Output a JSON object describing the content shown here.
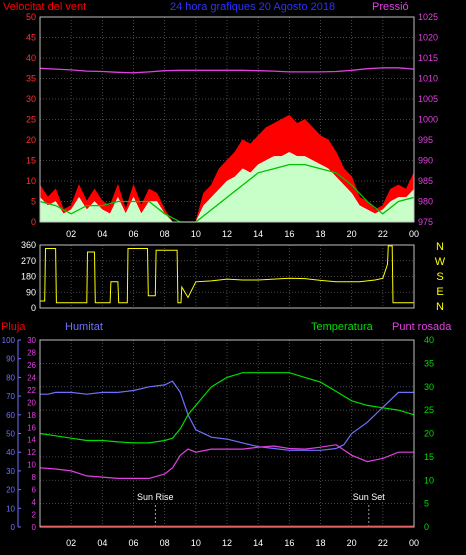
{
  "header": {
    "left_label": "Velocitat del vent",
    "center_label": "24 hora grafiques   20 Agosto 2018",
    "right_label": "Pressió"
  },
  "colors": {
    "background": "#000000",
    "grid": "#5a5a5a",
    "axis_frame": "#c0c0c0",
    "wind_gust": "#ff0000",
    "wind_avg": "#00c000",
    "wind_speed": "#c8ffc8",
    "pressure": "#e040e0",
    "direction": "#ffff00",
    "humidity": "#7070ff",
    "temperature": "#00dd00",
    "dewpoint": "#e040e0",
    "rain": "#ff0000",
    "sun_line": "#c0c0c0"
  },
  "chart_data": [
    {
      "id": "wind_pressure",
      "type": "line",
      "title": "24 hora grafiques   20 Agosto 2018",
      "x_ticks": [
        "02",
        "04",
        "06",
        "08",
        "10",
        "12",
        "14",
        "16",
        "18",
        "20",
        "22",
        "00"
      ],
      "x_range": [
        0,
        24
      ],
      "y_left": {
        "label": "Velocitat del vent",
        "range": [
          0,
          50
        ],
        "ticks": [
          0,
          5,
          10,
          15,
          20,
          25,
          30,
          35,
          40,
          45,
          50
        ]
      },
      "y_right": {
        "label": "Pressió",
        "range": [
          975,
          1025
        ],
        "ticks": [
          975,
          980,
          985,
          990,
          995,
          1000,
          1005,
          1010,
          1015,
          1020,
          1025
        ]
      },
      "grid": true,
      "series": [
        {
          "key": "gust",
          "axis": "left",
          "style": "fill",
          "x": [
            0,
            0.5,
            1,
            1.5,
            2,
            2.5,
            3,
            3.5,
            4,
            4.5,
            5,
            5.5,
            6,
            6.5,
            7,
            7.5,
            8,
            8.5,
            9,
            9.5,
            10,
            10.5,
            11,
            11.5,
            12,
            12.5,
            13,
            13.5,
            14,
            14.5,
            15,
            15.5,
            16,
            16.5,
            17,
            17.5,
            18,
            18.5,
            19,
            19.5,
            20,
            20.5,
            21,
            21.5,
            22,
            22.5,
            23,
            23.5,
            24
          ],
          "y": [
            9,
            6,
            8,
            3,
            4,
            9,
            5,
            8,
            5,
            4,
            9,
            3,
            9,
            4,
            8,
            7,
            3,
            0,
            0,
            0,
            0,
            7,
            9,
            13,
            15,
            17,
            20,
            19,
            21,
            23,
            24,
            25,
            26,
            24,
            25,
            23,
            21,
            20,
            17,
            13,
            11,
            6,
            5,
            3,
            4,
            8,
            9,
            8,
            12
          ]
        },
        {
          "key": "avg",
          "axis": "left",
          "style": "line",
          "x": [
            0,
            1,
            2,
            3,
            4,
            5,
            6,
            7,
            8,
            9,
            10,
            11,
            12,
            13,
            14,
            15,
            16,
            17,
            18,
            19,
            20,
            21,
            22,
            23,
            24
          ],
          "y": [
            5,
            4,
            2,
            4,
            4,
            5,
            5,
            5,
            2,
            0,
            0,
            3,
            6,
            9,
            12,
            13,
            14,
            14,
            13,
            12,
            9,
            5,
            2,
            5,
            6
          ]
        },
        {
          "key": "speed",
          "axis": "left",
          "style": "fill",
          "x": [
            0,
            0.5,
            1,
            1.5,
            2,
            2.5,
            3,
            3.5,
            4,
            4.5,
            5,
            5.5,
            6,
            6.5,
            7,
            7.5,
            8,
            8.5,
            9,
            9.5,
            10,
            10.5,
            11,
            11.5,
            12,
            12.5,
            13,
            13.5,
            14,
            14.5,
            15,
            15.5,
            16,
            16.5,
            17,
            17.5,
            18,
            18.5,
            19,
            19.5,
            20,
            20.5,
            21,
            21.5,
            22,
            22.5,
            23,
            23.5,
            24
          ],
          "y": [
            6,
            4,
            5,
            2,
            3,
            6,
            3,
            5,
            3,
            2,
            6,
            2,
            6,
            2,
            5,
            5,
            2,
            0,
            0,
            0,
            0,
            4,
            6,
            8,
            10,
            11,
            13,
            12,
            14,
            15,
            16,
            16,
            17,
            16,
            16,
            15,
            14,
            13,
            11,
            9,
            7,
            4,
            3,
            2,
            3,
            5,
            6,
            6,
            8
          ]
        },
        {
          "key": "pressure",
          "axis": "right",
          "style": "line",
          "x": [
            0,
            1,
            2,
            3,
            4,
            5,
            6,
            7,
            8,
            9,
            10,
            11,
            12,
            13,
            14,
            15,
            16,
            17,
            18,
            19,
            20,
            21,
            22,
            23,
            24
          ],
          "y": [
            1012.5,
            1012.3,
            1012.1,
            1011.8,
            1011.7,
            1011.5,
            1011.4,
            1011.6,
            1011.9,
            1012.0,
            1012.0,
            1012.0,
            1012.0,
            1012.0,
            1011.9,
            1011.8,
            1011.6,
            1011.6,
            1011.6,
            1011.7,
            1012.0,
            1012.4,
            1012.6,
            1012.6,
            1012.3
          ]
        }
      ]
    },
    {
      "id": "wind_direction",
      "type": "line",
      "x_range": [
        0,
        24
      ],
      "y_left": {
        "range": [
          0,
          360
        ],
        "ticks": [
          0,
          90,
          180,
          270,
          360
        ]
      },
      "y_right_labels": [
        "N",
        "W",
        "S",
        "E",
        "N"
      ],
      "grid": true,
      "series": [
        {
          "key": "direction",
          "axis": "left",
          "style": "step",
          "x": [
            0,
            0.3,
            0.35,
            1.0,
            1.05,
            3.0,
            3.05,
            3.5,
            3.55,
            4.5,
            4.55,
            5.0,
            5.05,
            5.6,
            5.65,
            6.5,
            6.55,
            6.9,
            6.95,
            7.4,
            7.45,
            8.8,
            8.85,
            9.05,
            9.1,
            9.5,
            10,
            11,
            12,
            13,
            14,
            15,
            16,
            17,
            18,
            19,
            20,
            20.5,
            21,
            21.5,
            22,
            22.3,
            22.35,
            22.6,
            22.65,
            24
          ],
          "y": [
            40,
            40,
            340,
            340,
            30,
            30,
            320,
            320,
            30,
            30,
            150,
            150,
            30,
            30,
            340,
            340,
            340,
            340,
            70,
            70,
            330,
            330,
            30,
            30,
            120,
            60,
            150,
            155,
            165,
            160,
            160,
            165,
            170,
            168,
            158,
            150,
            150,
            150,
            155,
            160,
            170,
            250,
            355,
            355,
            30,
            30
          ]
        }
      ]
    },
    {
      "id": "humidity_temp",
      "type": "line",
      "x_range": [
        0,
        24
      ],
      "x_ticks": [
        "02",
        "04",
        "06",
        "08",
        "10",
        "12",
        "14",
        "16",
        "18",
        "20",
        "22",
        "00"
      ],
      "labels": {
        "rain": "Pluja",
        "humidity": "Humitat",
        "temperature": "Temperatura",
        "dewpoint": "Punt rosada"
      },
      "axis_pluja": {
        "range": [
          0,
          100
        ],
        "ticks": [
          0,
          10,
          20,
          30,
          40,
          50,
          60,
          70,
          80,
          90,
          100
        ]
      },
      "axis_temp_left": {
        "range": [
          0,
          30
        ],
        "ticks": [
          0,
          2,
          4,
          6,
          8,
          10,
          12,
          14,
          16,
          18,
          20,
          22,
          24,
          26,
          28,
          30
        ]
      },
      "axis_temp_right": {
        "range": [
          0,
          40
        ],
        "ticks": [
          0,
          5,
          10,
          15,
          20,
          25,
          30,
          35,
          40
        ]
      },
      "annotations": [
        {
          "label": "Sun Rise",
          "x": 7.4
        },
        {
          "label": "Sun Set",
          "x": 21.1
        }
      ],
      "grid": true,
      "series": [
        {
          "key": "humidity",
          "axis": "pluja",
          "x": [
            0,
            0.5,
            1,
            2,
            3,
            4,
            5,
            6,
            7,
            8,
            8.5,
            9,
            9.5,
            10,
            11,
            12,
            13,
            14,
            15,
            16,
            17,
            18,
            19,
            19.5,
            20,
            21,
            22,
            23,
            24
          ],
          "y": [
            71,
            71,
            72,
            72,
            71,
            72,
            72,
            73,
            75,
            76,
            78,
            72,
            60,
            52,
            48,
            47,
            45,
            43,
            42,
            41,
            41,
            41,
            42,
            44,
            50,
            56,
            64,
            72,
            72
          ]
        },
        {
          "key": "temperature",
          "axis": "temp_right",
          "x": [
            0,
            1,
            2,
            3,
            4,
            5,
            6,
            7,
            8,
            8.5,
            9,
            9.5,
            10,
            11,
            12,
            13,
            14,
            15,
            16,
            17,
            18,
            19,
            20,
            21,
            22,
            23,
            24
          ],
          "y": [
            20,
            19.5,
            19,
            18.5,
            18.5,
            18.2,
            18,
            18,
            18.5,
            19,
            21,
            24,
            26,
            30,
            32,
            33,
            33,
            33,
            33,
            32,
            31,
            29,
            27,
            26,
            25.5,
            25,
            24
          ]
        },
        {
          "key": "dewpoint",
          "axis": "temp_left",
          "x": [
            0,
            1,
            2,
            3,
            4,
            5,
            6,
            7,
            8,
            8.5,
            9,
            9.5,
            10,
            11,
            12,
            13,
            14,
            15,
            16,
            17,
            18,
            19,
            20,
            21,
            22,
            23,
            24
          ],
          "y": [
            9.5,
            9.3,
            9,
            8.2,
            8,
            7.8,
            7.8,
            7.8,
            8.5,
            9.5,
            11.5,
            12.5,
            12,
            12.5,
            12.5,
            12.5,
            12.8,
            13,
            12.6,
            12.5,
            12.8,
            13.2,
            11.5,
            10.5,
            11,
            12,
            12
          ]
        },
        {
          "key": "rain",
          "axis": "pluja",
          "x": [
            0,
            24
          ],
          "y": [
            0.5,
            0.5
          ]
        }
      ]
    }
  ]
}
